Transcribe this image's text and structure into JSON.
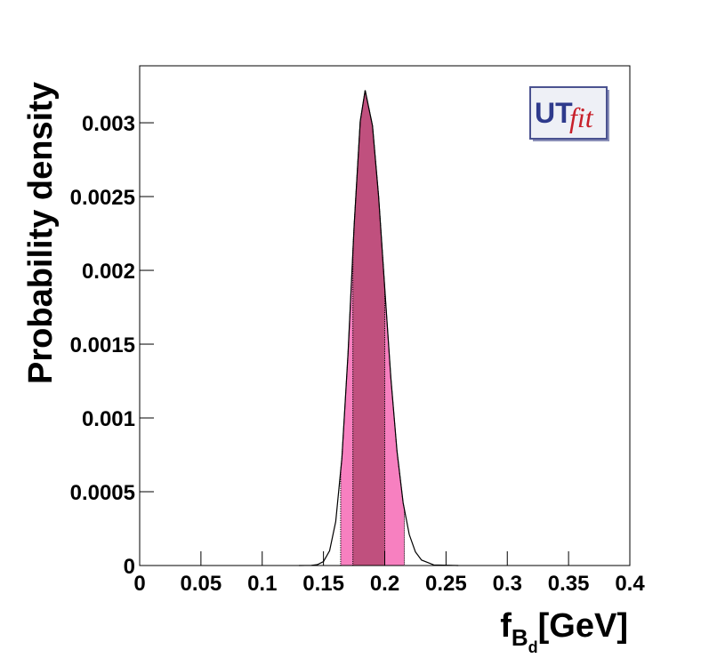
{
  "chart_data": {
    "type": "line",
    "ylabel": "Probability density",
    "xlabel": {
      "main": "f",
      "sub": "B",
      "subsub": "d",
      "unit": "[GeV]"
    },
    "logo": {
      "left": "UT",
      "right": "fit"
    },
    "xlim": [
      0,
      0.4
    ],
    "ylim": [
      0,
      0.003386
    ],
    "xticks": [
      0,
      0.05,
      0.1,
      0.15,
      0.2,
      0.25,
      0.3,
      0.35,
      0.4
    ],
    "yticks": [
      0,
      0.0005,
      0.001,
      0.0015,
      0.002,
      0.0025,
      0.003
    ],
    "x": [
      0.13,
      0.14,
      0.145,
      0.15,
      0.155,
      0.16,
      0.165,
      0.17,
      0.175,
      0.18,
      0.184,
      0.19,
      0.195,
      0.2,
      0.205,
      0.21,
      0.215,
      0.22,
      0.225,
      0.23,
      0.24,
      0.26
    ],
    "series": [
      {
        "color": "#000000",
        "values": [
          0,
          1e-06,
          6e-06,
          2.7e-05,
          0.0001,
          0.000298,
          0.000725,
          0.00143,
          0.0023,
          0.00301,
          0.00322,
          0.00298,
          0.0025,
          0.00188,
          0.00127,
          0.000775,
          0.000425,
          0.00021,
          9.3e-05,
          3.7e-05,
          4e-06,
          0
        ]
      }
    ],
    "intervals": [
      {
        "range": [
          0.164,
          0.216
        ],
        "color": "#f780c0"
      },
      {
        "range": [
          0.174,
          0.2
        ],
        "color": "#c0507e"
      }
    ]
  }
}
